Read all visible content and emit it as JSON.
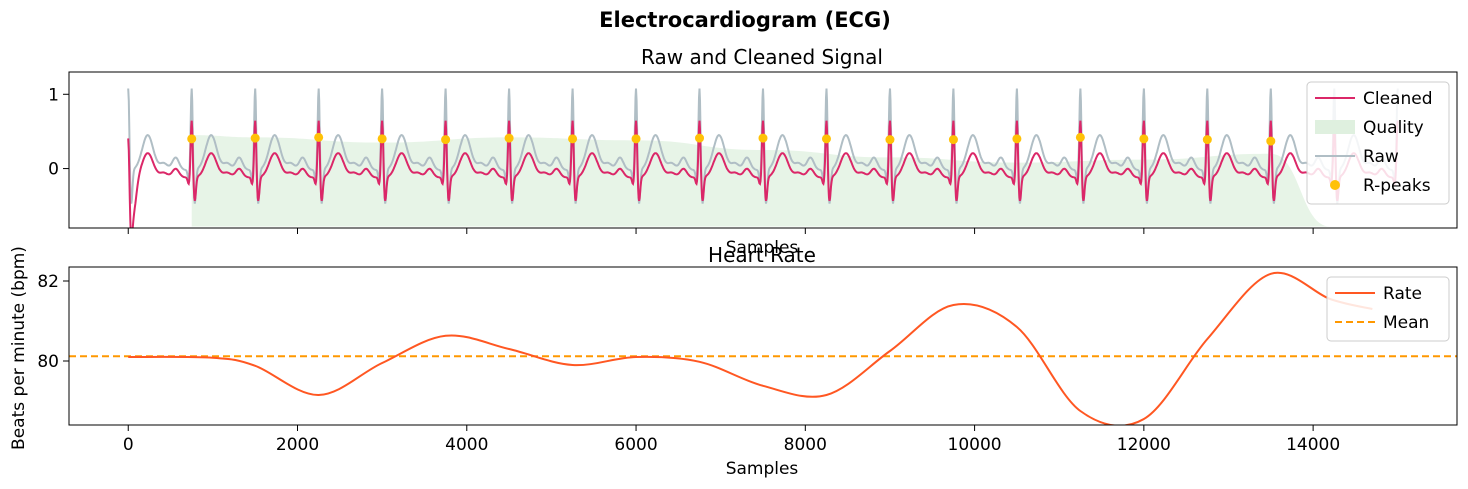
{
  "figure": {
    "title": "Electrocardiogram (ECG)"
  },
  "chart_data": [
    {
      "type": "line",
      "title": "Raw and Cleaned Signal",
      "xlabel": "Samples",
      "ylabel": "",
      "xlim": [
        -700,
        15700
      ],
      "ylim": [
        -0.8,
        1.3
      ],
      "yticks": [
        0,
        1
      ],
      "xticks_labels_shown": false,
      "legend": {
        "position": "top-right",
        "entries": [
          "Cleaned",
          "Quality",
          "Raw",
          "R-peaks"
        ]
      },
      "colors": {
        "cleaned": "#DB2768",
        "quality": "#DFF0DF",
        "raw": "#B0BEC5",
        "rpeaks": "#FFC107"
      },
      "series": [
        {
          "name": "Cleaned",
          "kind": "line",
          "peak_value": 0.4,
          "min_value": -0.35
        },
        {
          "name": "Raw",
          "kind": "line",
          "peak_value": 1.15,
          "min_value": -0.35
        },
        {
          "name": "Quality",
          "kind": "area",
          "x": [
            750,
            1500,
            3000,
            4500,
            6000,
            7500,
            9000,
            10500,
            12000,
            13500,
            14200
          ],
          "values": [
            0.45,
            0.42,
            0.35,
            0.42,
            0.38,
            0.25,
            0.15,
            0.08,
            0.12,
            0.2,
            -0.78
          ],
          "baseline": -0.78
        },
        {
          "name": "R-peaks",
          "kind": "scatter",
          "x": [
            750,
            1500,
            2250,
            3000,
            3750,
            4500,
            5250,
            6000,
            6750,
            7500,
            8250,
            9000,
            9750,
            10500,
            11250,
            12000,
            12750,
            13500
          ],
          "values": [
            0.4,
            0.41,
            0.42,
            0.4,
            0.39,
            0.41,
            0.4,
            0.4,
            0.41,
            0.41,
            0.4,
            0.39,
            0.39,
            0.4,
            0.42,
            0.4,
            0.39,
            0.37
          ]
        }
      ]
    },
    {
      "type": "line",
      "title": "Heart Rate",
      "xlabel": "Samples",
      "ylabel": "Beats per minute (bpm)",
      "xlim": [
        -700,
        15700
      ],
      "ylim": [
        78.4,
        82.35
      ],
      "xticks": [
        0,
        2000,
        4000,
        6000,
        8000,
        10000,
        12000,
        14000
      ],
      "yticks": [
        80,
        82
      ],
      "legend": {
        "position": "top-right",
        "entries": [
          "Rate",
          "Mean"
        ]
      },
      "colors": {
        "rate": "#FF5722",
        "mean": "#FF9800"
      },
      "series": [
        {
          "name": "Rate",
          "x": [
            0,
            1000,
            1500,
            2250,
            3000,
            3750,
            4500,
            5250,
            6000,
            6750,
            7500,
            8250,
            9000,
            9750,
            10500,
            11250,
            12000,
            12750,
            13500,
            14200,
            14700
          ],
          "values": [
            80.1,
            80.08,
            79.88,
            79.15,
            79.95,
            80.63,
            80.3,
            79.9,
            80.1,
            79.98,
            79.38,
            79.15,
            80.25,
            81.4,
            80.85,
            78.75,
            78.55,
            80.55,
            82.18,
            81.55,
            81.3
          ]
        },
        {
          "name": "Mean",
          "value": 80.12
        }
      ]
    }
  ]
}
